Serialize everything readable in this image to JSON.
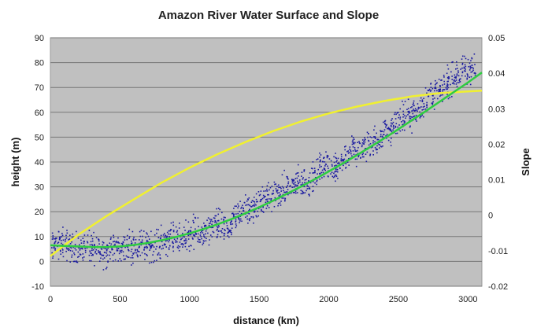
{
  "chart_data": {
    "type": "scatter",
    "title": "Amazon River Water Surface and Slope",
    "xlabel": "distance (km)",
    "ylabel": "height (m)",
    "y2label": "Slope",
    "xlim": [
      0,
      3100
    ],
    "ylim": [
      -10,
      90
    ],
    "y2lim": [
      -0.02,
      0.05
    ],
    "x_ticks": [
      0,
      500,
      1000,
      1500,
      2000,
      2500,
      3000
    ],
    "y_ticks": [
      -10,
      0,
      10,
      20,
      30,
      40,
      50,
      60,
      70,
      80,
      90
    ],
    "y2_ticks": [
      "-0.02",
      "-0.01",
      "0",
      "0.01",
      "0.02",
      "0.03",
      "0.04",
      "0.05"
    ],
    "grid": "horizontal",
    "plot_background": "#c0c0c0",
    "series": [
      {
        "axis": "left",
        "style": "scatter",
        "color": "#1a1aa0",
        "x": [
          0,
          50,
          100,
          150,
          200,
          250,
          300,
          350,
          400,
          450,
          500,
          550,
          600,
          650,
          700,
          750,
          800,
          850,
          900,
          950,
          1000,
          1050,
          1100,
          1150,
          1200,
          1250,
          1300,
          1350,
          1400,
          1450,
          1500,
          1550,
          1600,
          1650,
          1700,
          1750,
          1800,
          1850,
          1900,
          1950,
          2000,
          2050,
          2100,
          2150,
          2200,
          2250,
          2300,
          2350,
          2400,
          2450,
          2500,
          2550,
          2600,
          2650,
          2700,
          2750,
          2800,
          2850,
          2900,
          2950,
          3000,
          3050
        ],
        "y": [
          5,
          8,
          7,
          6,
          6,
          5,
          6,
          5,
          4,
          5,
          6,
          6,
          7,
          7,
          6,
          7,
          8,
          9,
          9,
          10,
          11,
          12,
          11,
          13,
          15,
          13,
          14,
          20,
          21,
          21,
          24,
          25,
          27,
          28,
          30,
          31,
          32,
          33,
          34,
          39,
          40,
          38,
          42,
          44,
          45,
          46,
          47,
          49,
          53,
          54,
          57,
          58,
          60,
          62,
          66,
          68,
          69,
          72,
          74,
          76,
          77,
          80
        ]
      },
      {
        "axis": "left",
        "style": "line",
        "color": "#2ecc40",
        "x": [
          0,
          100,
          200,
          300,
          400,
          500,
          600,
          700,
          800,
          900,
          1000,
          1100,
          1200,
          1300,
          1400,
          1500,
          1600,
          1700,
          1800,
          1900,
          2000,
          2100,
          2200,
          2300,
          2400,
          2500,
          2600,
          2700,
          2800,
          2900,
          3000,
          3100
        ],
        "y": [
          6.5,
          6.2,
          6,
          5.8,
          5.8,
          6.0,
          6.6,
          7.4,
          8.5,
          9.8,
          11.3,
          13,
          14.9,
          17,
          19.3,
          21.8,
          24.4,
          27.2,
          30.1,
          33.1,
          36.2,
          39.4,
          42.7,
          46.1,
          49.6,
          53.2,
          56.9,
          60.6,
          64.4,
          68.2,
          72,
          76
        ]
      },
      {
        "axis": "right",
        "style": "line",
        "color": "#f0f030",
        "x": [
          0,
          200,
          400,
          600,
          800,
          1000,
          1200,
          1400,
          1600,
          1800,
          2000,
          2200,
          2400,
          2600,
          2800,
          3000,
          3100
        ],
        "y": [
          -0.0115,
          -0.0055,
          -0.0003,
          0.0045,
          0.0092,
          0.0134,
          0.0172,
          0.0206,
          0.0237,
          0.0264,
          0.0287,
          0.0306,
          0.0322,
          0.0335,
          0.0344,
          0.0349,
          0.0351
        ]
      }
    ]
  }
}
